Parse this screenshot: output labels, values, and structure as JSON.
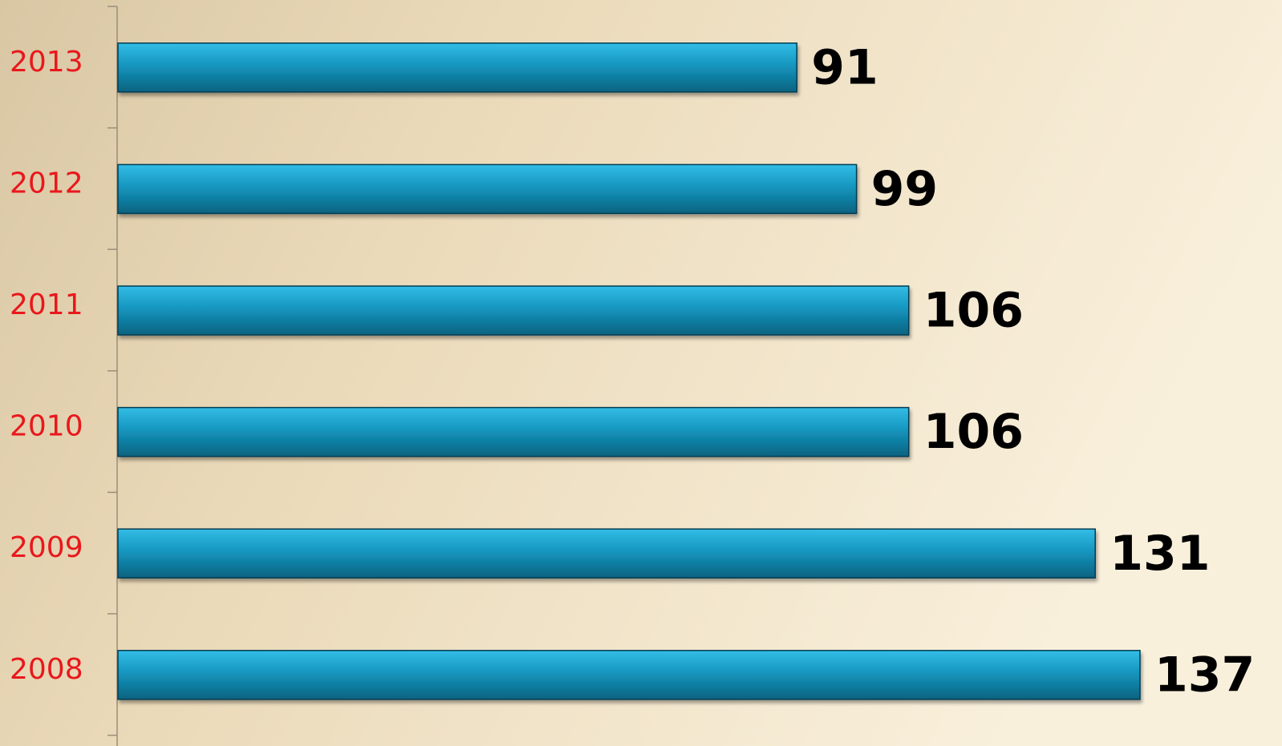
{
  "chart_data": {
    "type": "bar",
    "orientation": "horizontal",
    "categories": [
      "2013",
      "2012",
      "2011",
      "2010",
      "2009",
      "2008"
    ],
    "values": [
      91,
      99,
      106,
      106,
      131,
      137
    ],
    "color": "#1a9cc4"
  }
}
